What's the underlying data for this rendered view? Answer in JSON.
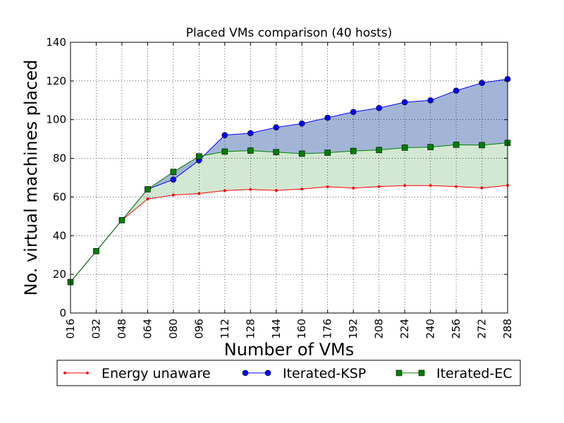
{
  "chart_data": {
    "type": "line",
    "title": "Placed VMs comparison (40 hosts)",
    "xlabel": "Number of VMs",
    "ylabel": "No. virtual machines placed",
    "categories": [
      "016",
      "032",
      "048",
      "064",
      "080",
      "096",
      "112",
      "128",
      "144",
      "160",
      "176",
      "192",
      "208",
      "224",
      "240",
      "256",
      "272",
      "288"
    ],
    "x": [
      16,
      32,
      48,
      64,
      80,
      96,
      112,
      128,
      144,
      160,
      176,
      192,
      208,
      224,
      240,
      256,
      272,
      288
    ],
    "xlim": [
      16,
      288
    ],
    "ylim": [
      0,
      140
    ],
    "yticks": [
      0,
      20,
      40,
      60,
      80,
      100,
      120,
      140
    ],
    "grid": true,
    "legend_position": "bottom",
    "series": [
      {
        "name": "Energy unaware",
        "color": "#ff0000",
        "marker": "point",
        "values": [
          16,
          32,
          48,
          59,
          61,
          61.8,
          63.3,
          63.9,
          63.4,
          64.1,
          65.3,
          64.6,
          65.4,
          65.9,
          65.9,
          65.4,
          64.7,
          66
        ]
      },
      {
        "name": "Iterated-KSP",
        "color": "#0000ff",
        "marker": "circle",
        "values": [
          16,
          32,
          48,
          64,
          69,
          79,
          92,
          93,
          96,
          98,
          101,
          104,
          106,
          109,
          110,
          115,
          119,
          121
        ]
      },
      {
        "name": "Iterated-EC",
        "color": "#008000",
        "marker": "square",
        "values": [
          16,
          32,
          48,
          64,
          73,
          81,
          83.5,
          84,
          83.2,
          82.4,
          82.9,
          83.8,
          84.3,
          85.5,
          85.8,
          87,
          86.8,
          88
        ]
      }
    ],
    "fills": [
      {
        "between": [
          "Energy unaware",
          "Iterated-EC"
        ],
        "color": "#d2e8d2"
      },
      {
        "between": [
          "Iterated-EC",
          "Iterated-KSP"
        ],
        "color": "#a3b5d6"
      }
    ]
  }
}
